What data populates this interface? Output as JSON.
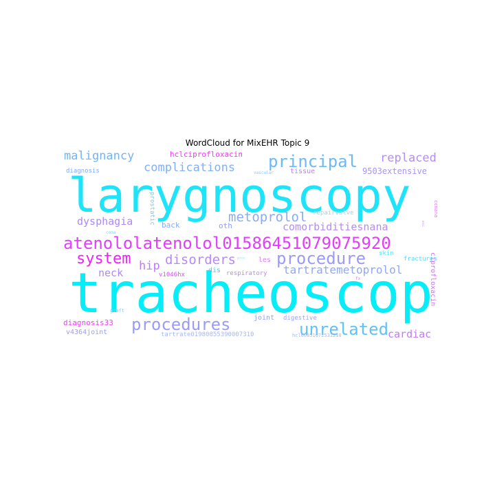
{
  "title": "WordCloud for MixEHR Topic 9",
  "words": [
    {
      "text": "larygnoscopy",
      "color": "#1ee3f9"
    },
    {
      "text": "tracheoscop",
      "color": "#06edf7"
    },
    {
      "text": "atenololatenolol01586451079075920",
      "color": "#e23ef9"
    },
    {
      "text": "procedure",
      "color": "#9c9af5"
    },
    {
      "text": "procedures",
      "color": "#9a9cf5"
    },
    {
      "text": "unrelated",
      "color": "#5fc2f8"
    },
    {
      "text": "principal",
      "color": "#6abaf8"
    },
    {
      "text": "system",
      "color": "#ee22f8"
    },
    {
      "text": "disorders",
      "color": "#b68af6"
    },
    {
      "text": "metoprolol",
      "color": "#8aaaf6"
    },
    {
      "text": "malignancy",
      "color": "#6fb5f8"
    },
    {
      "text": "complications",
      "color": "#7fb0f7"
    },
    {
      "text": "replaced",
      "color": "#b28ef6"
    },
    {
      "text": "dysphagia",
      "color": "#ae88f6"
    },
    {
      "text": "comorbiditiesnana",
      "color": "#b48cf6"
    },
    {
      "text": "tartratemetoprolol",
      "color": "#8ea8f6"
    },
    {
      "text": "hip",
      "color": "#c079f7"
    },
    {
      "text": "neck",
      "color": "#b088f6"
    },
    {
      "text": "cardiac",
      "color": "#c07af7"
    },
    {
      "text": "hclciprofloxacin",
      "color": "#ec3af8"
    },
    {
      "text": "9503extensive",
      "color": "#a496f5"
    },
    {
      "text": "diagnosis",
      "color": "#82aaf6"
    },
    {
      "text": "tissue",
      "color": "#c27af7"
    },
    {
      "text": "vascular",
      "color": "#8ec6f7"
    },
    {
      "text": "prostatic",
      "color": "#80c6f7"
    },
    {
      "text": "back",
      "color": "#86aaf6"
    },
    {
      "text": "oth",
      "color": "#8a9ef6"
    },
    {
      "text": "repairvalve",
      "color": "#9ad8f8"
    },
    {
      "text": "coma",
      "color": "#7ed8f8"
    },
    {
      "text": "proc",
      "color": "#9ee0f8"
    },
    {
      "text": "les",
      "color": "#e07af7"
    },
    {
      "text": "skin",
      "color": "#5ae0f8"
    },
    {
      "text": "fractures",
      "color": "#5ed8f8"
    },
    {
      "text": "ciprofloxacin",
      "color": "#d46af7"
    },
    {
      "text": "ccnana",
      "color": "#e07af7"
    },
    {
      "text": "esc",
      "color": "#c89af7"
    },
    {
      "text": "v1046hx",
      "color": "#d050f8"
    },
    {
      "text": "dis",
      "color": "#4ac8f8"
    },
    {
      "text": "respiratory",
      "color": "#b888f6"
    },
    {
      "text": "fx",
      "color": "#e07af7"
    },
    {
      "text": "graft",
      "color": "#8ec6f7"
    },
    {
      "text": "diagnosis33",
      "color": "#ee3ef8"
    },
    {
      "text": "joint",
      "color": "#8e9ef6"
    },
    {
      "text": "digestive",
      "color": "#9ea6f6"
    },
    {
      "text": "v4364joint",
      "color": "#9a9cf5"
    },
    {
      "text": "tartrate01980855390007310",
      "color": "#a6b6f6"
    },
    {
      "text": "hcl00851072531210",
      "color": "#a6b6f6"
    }
  ]
}
